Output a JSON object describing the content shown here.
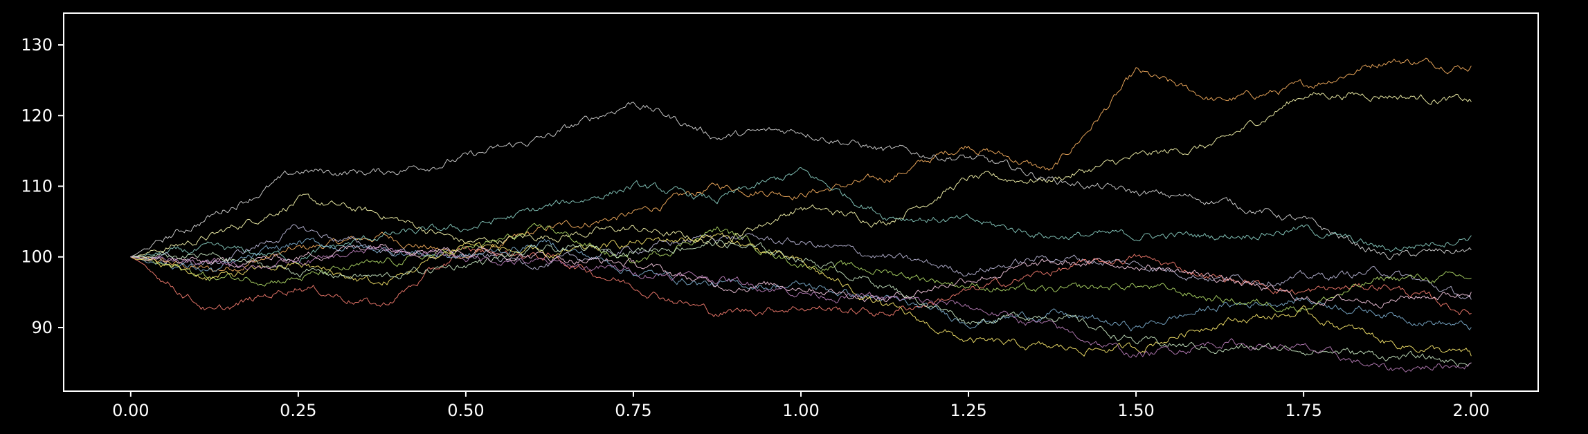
{
  "chart_data": {
    "type": "line",
    "title": "",
    "xlabel": "",
    "ylabel": "",
    "xlim": [
      -0.1,
      2.1
    ],
    "ylim": [
      81,
      134.5
    ],
    "x_ticks": [
      {
        "value": 0.0,
        "label": "0.00"
      },
      {
        "value": 0.25,
        "label": "0.25"
      },
      {
        "value": 0.5,
        "label": "0.50"
      },
      {
        "value": 0.75,
        "label": "0.75"
      },
      {
        "value": 1.0,
        "label": "1.00"
      },
      {
        "value": 1.25,
        "label": "1.25"
      },
      {
        "value": 1.5,
        "label": "1.50"
      },
      {
        "value": 1.75,
        "label": "1.75"
      },
      {
        "value": 2.0,
        "label": "2.00"
      }
    ],
    "y_ticks": [
      {
        "value": 90,
        "label": "90"
      },
      {
        "value": 100,
        "label": "100"
      },
      {
        "value": 110,
        "label": "110"
      },
      {
        "value": 120,
        "label": "120"
      },
      {
        "value": 130,
        "label": "130"
      }
    ],
    "grid": false,
    "legend": "none",
    "background": "#000000",
    "axes_color": "#ffffff",
    "x": [
      0.0,
      0.125,
      0.25,
      0.375,
      0.5,
      0.625,
      0.75,
      0.875,
      1.0,
      1.125,
      1.25,
      1.375,
      1.5,
      1.625,
      1.75,
      1.875,
      2.0
    ],
    "series": [
      {
        "color": "#fdb462",
        "values": [
          100,
          98,
          101,
          103,
          100,
          104,
          106,
          110,
          109,
          111,
          116,
          112,
          126,
          122,
          124,
          128,
          127
        ]
      },
      {
        "color": "#ffffb3",
        "values": [
          100,
          103,
          108,
          106,
          102,
          103,
          104,
          102,
          107,
          105,
          111,
          111,
          114,
          116,
          123,
          123,
          122
        ]
      },
      {
        "color": "#d9d9d9",
        "values": [
          100,
          106,
          112,
          112,
          114,
          117,
          122,
          117,
          118,
          115,
          114,
          111,
          109,
          108,
          105,
          100,
          101
        ]
      },
      {
        "color": "#8dd3c7",
        "values": [
          100,
          101,
          100,
          103,
          104,
          107,
          110,
          108,
          112,
          106,
          105,
          103,
          103,
          103,
          104,
          101,
          103
        ]
      },
      {
        "color": "#bebada",
        "values": [
          100,
          99,
          104,
          101,
          100,
          99,
          101,
          103,
          102,
          100,
          98,
          100,
          99,
          97,
          97,
          98,
          94
        ]
      },
      {
        "color": "#fb8072",
        "values": [
          100,
          92,
          96,
          93,
          101,
          100,
          96,
          92,
          93,
          92,
          95,
          98,
          100,
          97,
          95,
          96,
          92
        ]
      },
      {
        "color": "#80b1d3",
        "values": [
          100,
          98,
          102,
          101,
          100,
          102,
          98,
          96,
          96,
          94,
          91,
          92,
          90,
          93,
          94,
          92,
          90
        ]
      },
      {
        "color": "#b3de69",
        "values": [
          100,
          97,
          97,
          99,
          101,
          104,
          99,
          104,
          99,
          98,
          96,
          95,
          96,
          94,
          93,
          97,
          97
        ]
      },
      {
        "color": "#fccde5",
        "values": [
          100,
          99,
          100,
          102,
          101,
          100,
          99,
          96,
          96,
          94,
          97,
          99,
          99,
          97,
          94,
          94,
          95
        ]
      },
      {
        "color": "#ffed6f",
        "values": [
          100,
          97,
          99,
          96,
          102,
          100,
          102,
          103,
          99,
          93,
          88,
          87,
          87,
          91,
          92,
          88,
          86
        ]
      },
      {
        "color": "#ccebc5",
        "values": [
          100,
          100,
          98,
          97,
          99,
          101,
          101,
          102,
          100,
          96,
          91,
          92,
          88,
          87,
          87,
          86,
          85
        ]
      },
      {
        "color": "#bc80bd",
        "values": [
          100,
          99,
          99,
          101,
          100,
          99,
          98,
          97,
          95,
          94,
          93,
          90,
          86,
          88,
          87,
          84,
          85
        ]
      }
    ]
  }
}
